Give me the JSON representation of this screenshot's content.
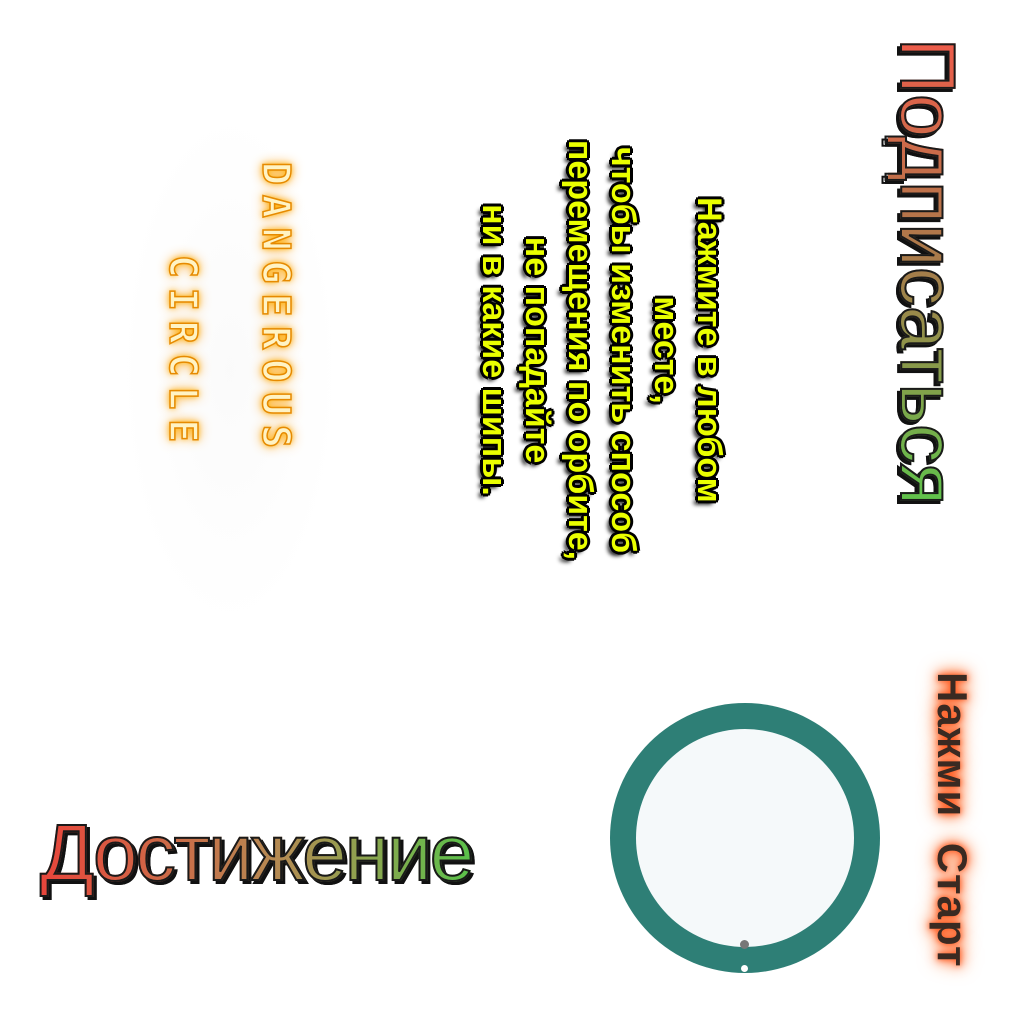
{
  "game": {
    "title_line1": "DANGEROUS",
    "title_line2": "CIRCLE",
    "hint": "Нажмите в любом\nместе,\nчтобы изменить способ\nперемещения по орбите,\nне попадайте\nни в какие шипы.",
    "subscribe_label": "Подписаться",
    "achievement_label": "Достижение",
    "start_label": "Нажми  Старт"
  },
  "colors": {
    "ring": "#2e7f76",
    "ring_inner": "#f5f9fa",
    "hint_text": "#eaff00",
    "title_glow": "#ff9800",
    "start_glow": "#ff3b00"
  },
  "icons": {
    "player_dot": "grey-dot",
    "orbit_marker": "white-dot"
  }
}
